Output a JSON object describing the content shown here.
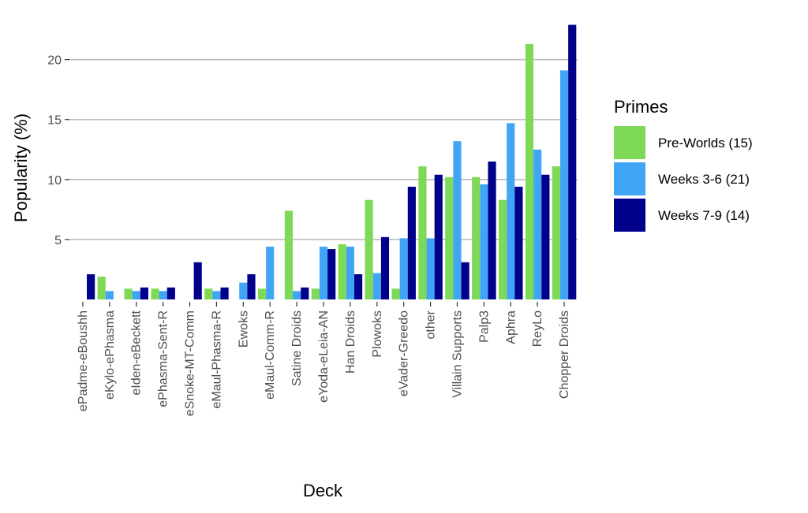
{
  "chart_data": {
    "type": "bar",
    "title": "",
    "xlabel": "Deck",
    "ylabel": "Popularity (%)",
    "ylim": [
      0,
      23
    ],
    "yticks": [
      5,
      10,
      15,
      20
    ],
    "grid": "horizontal",
    "legend_placement": "right",
    "legend_title": "Primes",
    "categories": [
      "ePadme-eBoushh",
      "eKylo-ePhasma",
      "eIden-eBeckett",
      "ePhasma-Sent-R",
      "eSnoke-MT-Comm",
      "eMaul-Phasma-R",
      "Ewoks",
      "eMaul-Comm-R",
      "Satine Droids",
      "eYoda-eLeia-AN",
      "Han Droids",
      "Plowoks",
      "eVader-Greedo",
      "other",
      "Villain Supports",
      "Palp3",
      "Aphra",
      "ReyLo",
      "Chopper Droids"
    ],
    "series": [
      {
        "name": "Pre-Worlds (15)",
        "color": "#7ed957",
        "values": [
          0,
          1.9,
          0.9,
          0.9,
          0,
          0.9,
          0,
          0.9,
          7.4,
          0.9,
          4.6,
          8.3,
          0.9,
          11.1,
          10.2,
          10.2,
          8.3,
          21.3,
          11.1
        ]
      },
      {
        "name": "Weeks 3-6 (21)",
        "color": "#41a5f5",
        "values": [
          0,
          0.7,
          0.7,
          0.7,
          0,
          0.7,
          1.4,
          4.4,
          0.7,
          4.4,
          4.4,
          2.2,
          5.1,
          5.1,
          13.2,
          9.6,
          14.7,
          12.5,
          19.1
        ]
      },
      {
        "name": "Weeks 7-9 (14)",
        "color": "#00008b",
        "values": [
          2.1,
          0,
          1.0,
          1.0,
          3.1,
          1.0,
          2.1,
          0,
          1.0,
          4.2,
          2.1,
          5.2,
          9.4,
          10.4,
          3.1,
          11.5,
          9.4,
          10.4,
          22.9
        ]
      }
    ]
  }
}
